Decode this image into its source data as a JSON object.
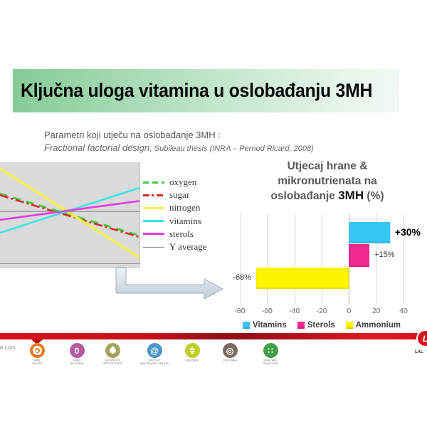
{
  "slide": {
    "title": "Ključna uloga vitamina u oslobađanju 3MH",
    "subtitle_line1": "Parametri koji utječu na oslobađanje  3MH :",
    "subtitle_line2_main": "Fractional factorial design,",
    "subtitle_line2_detail": " Subileau thesis (INRA – Pernod Ricard, 2008)"
  },
  "line_chart": {
    "cropped_tick_marks": "- - -",
    "plot_bg": "#dbdbdb"
  },
  "bar_chart": {
    "title_line1": "Utjecaj hrane  &",
    "title_line2": "mikronutrienata na",
    "title_line3_pre": "oslobađanje ",
    "title_line3_em": "3MH",
    "title_line3_post": "  (%)"
  },
  "chart_data": [
    {
      "type": "line",
      "title": "",
      "note": "effect plot, x axis cropped at slide edge; endpoints given as fraction of plot height from top",
      "legend_position": "right",
      "plot_bg": "#dbdbdb",
      "series": [
        {
          "name": "oxygen",
          "color": "#3ecb33",
          "style": "dashed",
          "trend": "decreasing",
          "y_start_frac": 0.3,
          "y_end_frac": 0.7
        },
        {
          "name": "sugar",
          "color": "#e02828",
          "style": "dash-dot",
          "trend": "decreasing",
          "y_start_frac": 0.315,
          "y_end_frac": 0.715
        },
        {
          "name": "nitrogen",
          "color": "#f3ef52",
          "style": "solid",
          "trend": "strongly decreasing",
          "y_start_frac": 0.06,
          "y_end_frac": 0.91
        },
        {
          "name": "vitamins",
          "color": "#3ae6e6",
          "style": "solid",
          "trend": "increasing",
          "y_start_frac": 0.675,
          "y_end_frac": 0.245
        },
        {
          "name": "sterols",
          "color": "#e73ae0",
          "style": "solid",
          "trend": "increasing",
          "y_start_frac": 0.55,
          "y_end_frac": 0.37
        },
        {
          "name": "Y average",
          "color": "#8c8c8c",
          "style": "solid",
          "trend": "flat",
          "y_start_frac": 0.47,
          "y_end_frac": 0.47
        }
      ]
    },
    {
      "type": "bar",
      "orientation": "horizontal",
      "title": "Utjecaj hrane & mikronutrienata na oslobađanje 3MH (%)",
      "categories": [
        "Vitamins",
        "Sterols",
        "Ammonium"
      ],
      "values": [
        30,
        15,
        -68
      ],
      "labels": [
        "+30%",
        "+15%",
        "-68%"
      ],
      "colors": [
        "#38c6f4",
        "#f2278f",
        "#fdf500"
      ],
      "xlim": [
        -80,
        40
      ],
      "xticks": [
        -80,
        -60,
        -40,
        -20,
        0,
        20,
        40
      ],
      "grid": true,
      "legend_position": "bottom"
    }
  ],
  "footer": {
    "website_fragment": "e.com",
    "brand_fragment": "LAL",
    "brand_initial": "L",
    "band_color": "#d9111d",
    "logos": [
      {
        "id": "wine-yeasts",
        "label": "WINE\nYEASTS",
        "color": "#e87b1e",
        "icon": "target",
        "char": ""
      },
      {
        "id": "wine-bacteria",
        "label": "WINE\nBACTERIA",
        "color": "#b35ba0",
        "icon": "char",
        "char": "0"
      },
      {
        "id": "nutrients-protectors",
        "label": "NUTRIENTS\n/PROTECTORS",
        "color": "#a3a35c",
        "icon": "droplet",
        "char": ""
      },
      {
        "id": "specific-inactivated-yeasts",
        "label": "SPECIFIC\nINACTIVATED YEASTS",
        "color": "#4b97c9",
        "icon": "char",
        "char": "@"
      },
      {
        "id": "enzymes",
        "label": "ENZYMES",
        "color": "#bfcf1f",
        "icon": "arrows",
        "char": ""
      },
      {
        "id": "chitosan",
        "label": "CHITOSAN",
        "color": "#7b6b62",
        "icon": "char",
        "char": "◎"
      },
      {
        "id": "vineyard-solutions",
        "label": "VINEYARD\nSOLUTIONS",
        "color": "#43a047",
        "icon": "char",
        "char": "∷"
      }
    ]
  }
}
